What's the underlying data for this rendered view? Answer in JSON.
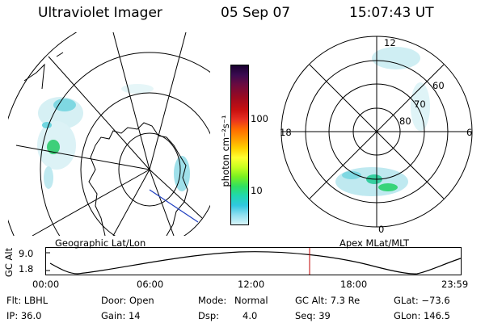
{
  "header": {
    "instrument": "Ultraviolet Imager",
    "date": "05 Sep 07",
    "time": "15:07:43 UT"
  },
  "colorbar": {
    "unit_label": "photon cm⁻²s⁻¹",
    "ticks": [
      "100",
      "10"
    ],
    "colors": [
      "#1a0030",
      "#3a0a50",
      "#6a0a40",
      "#9a0a20",
      "#c81010",
      "#e83020",
      "#ff6a00",
      "#ff9a00",
      "#ffd000",
      "#ffff30",
      "#c8ff20",
      "#7af020",
      "#30e060",
      "#20d8b0",
      "#30c8e0",
      "#90e0f0",
      "#d8f4f8"
    ]
  },
  "left_map": {
    "label": "Geographic Lat/Lon"
  },
  "right_map": {
    "label": "Apex  MLat/MLT",
    "lat_labels": [
      "60",
      "70",
      "80"
    ],
    "mlt_labels": {
      "top": "12",
      "left": "18",
      "right": "6",
      "bottom": "0"
    }
  },
  "altitude_plot": {
    "ylabel": "GC Alt",
    "y_ticks": [
      "9.0",
      "1.8"
    ],
    "x_ticks": [
      "00:00",
      "06:00",
      "12:00",
      "18:00",
      "23:59"
    ],
    "marker_time": "15:07"
  },
  "info": {
    "filter": "Flt: LBHL",
    "ip": "IP: 36.0",
    "door": "Door: Open",
    "gain": "Gain: 14",
    "mode_label": "Mode:",
    "mode_value": "Normal",
    "dsp_label": "Dsp:",
    "dsp_value": "4.0",
    "gc_alt": "GC Alt: 7.3 Re",
    "seq": "Seq: 39",
    "glat": "GLat: −73.6",
    "glon": "GLon: 146.5"
  }
}
